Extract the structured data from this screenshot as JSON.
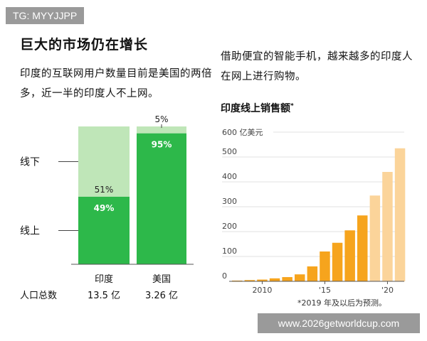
{
  "watermark_top": "TG: MYYJJPP",
  "watermark_bottom": "www.2026getworldcup.com",
  "headline": "巨大的市场仍在增长",
  "description_left": "印度的互联网用户数量目前是美国的两倍多，近一半的印度人不上网。",
  "description_right": "借助便宜的智能手机，越来越多的印度人在网上进行购物。",
  "colors": {
    "online": "#2db84a",
    "offline": "#bfe6b8",
    "axis": "#555555",
    "sales_gradient": [
      "#f6a41d",
      "#fbd49a"
    ]
  },
  "chart_data": [
    {
      "type": "bar",
      "stacked": true,
      "orientation": "vertical",
      "categories": [
        "印度",
        "美国"
      ],
      "series": [
        {
          "name": "线上",
          "values": [
            49,
            95
          ],
          "labels": [
            "49%",
            "95%"
          ]
        },
        {
          "name": "线下",
          "values": [
            51,
            5
          ],
          "labels": [
            "51%",
            "5%"
          ]
        }
      ],
      "legend_labels": {
        "offline": "线下",
        "online": "线上"
      },
      "population_label": "人口总数",
      "population_values": [
        "13.5 亿",
        "3.26 亿"
      ],
      "population_numbers": [
        13.5,
        3.26
      ],
      "bar_width_scaled_by": "population"
    },
    {
      "type": "bar",
      "title": "印度线上销售额",
      "title_mark": "*",
      "ylabel": "600 亿美元",
      "ylim": [
        0,
        600
      ],
      "yticks": [
        0,
        100,
        200,
        300,
        400,
        500
      ],
      "x": [
        2008,
        2009,
        2010,
        2011,
        2012,
        2013,
        2014,
        2015,
        2016,
        2017,
        2018,
        2019,
        2020,
        2021
      ],
      "values": [
        3,
        5,
        7,
        12,
        17,
        28,
        60,
        120,
        155,
        205,
        265,
        345,
        440,
        535
      ],
      "xtick_labels": {
        "2010": "2010",
        "2015": "'15",
        "2020": "'20"
      },
      "projected_from": 2019,
      "footnote": "*2019 年及以后为预测。"
    }
  ]
}
